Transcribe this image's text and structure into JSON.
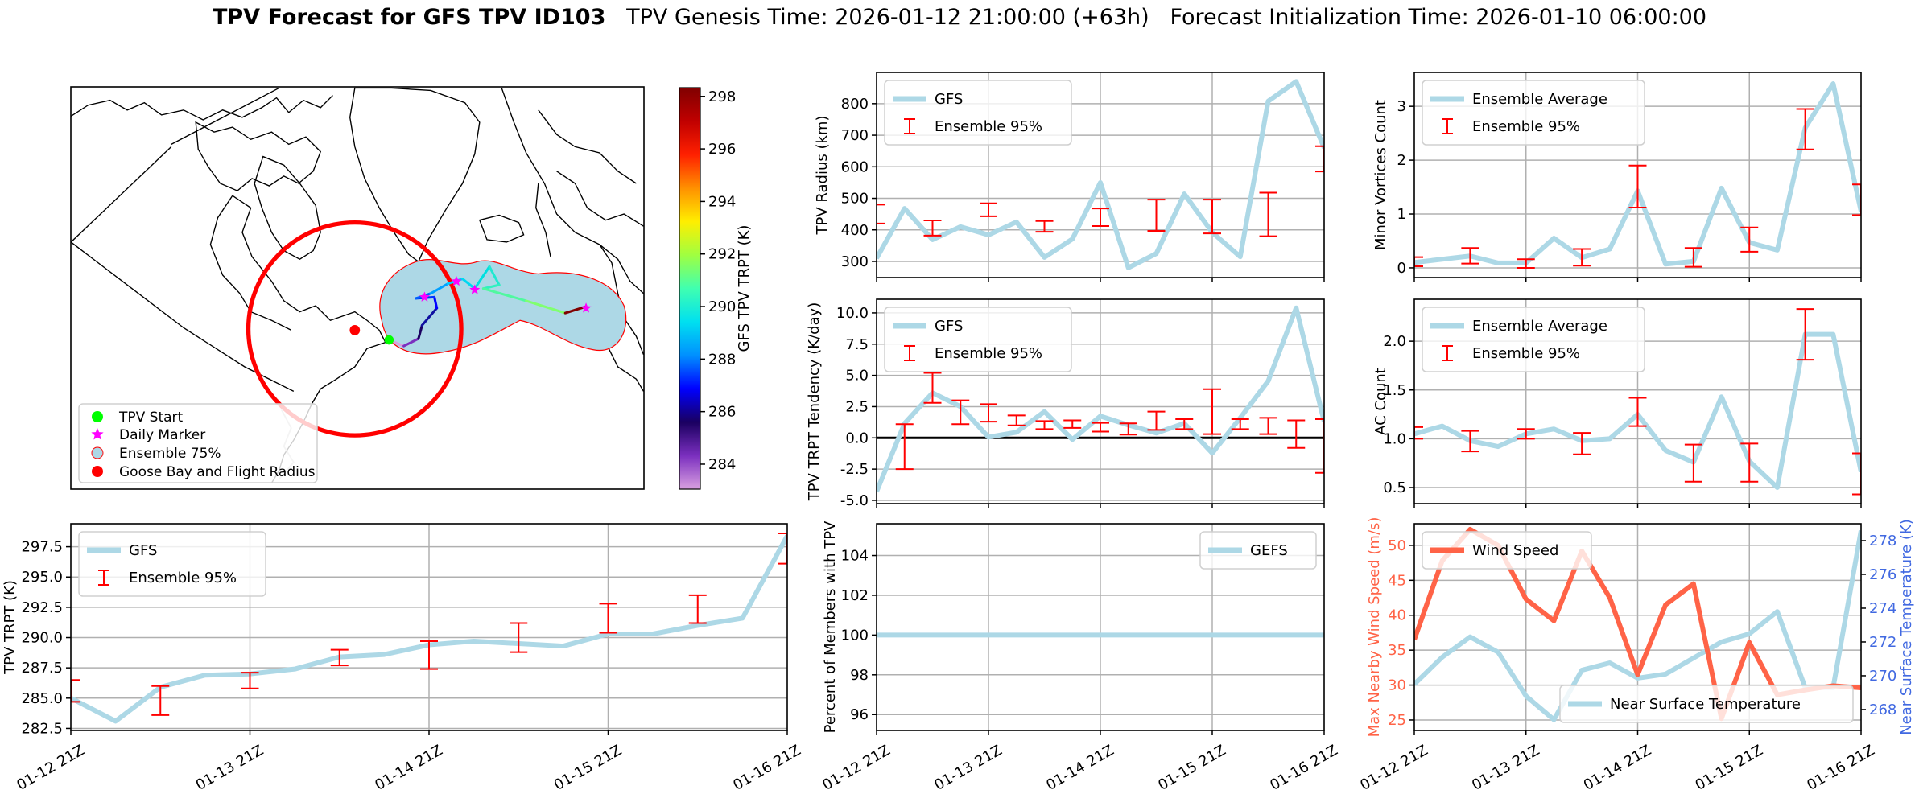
{
  "title": {
    "bold": "TPV Forecast for GFS TPV ID103",
    "genesis": "TPV Genesis Time: 2026-01-12 21:00:00 (+63h)",
    "init": "Forecast Initialization Time: 2026-01-10 06:00:00"
  },
  "colors": {
    "series": "#add8e6",
    "errorbar": "#ff0000",
    "wind": "#ff6347",
    "temperature_axis": "#4169e1",
    "grid": "#b0b0b0",
    "goose_bay": "#ff0000",
    "tpv_start": "#00ff00",
    "daily_marker": "#ff00ff",
    "ensemble_fill": "#add8e6"
  },
  "time_axis": {
    "x": [
      "01-12 21Z",
      "01-13 03Z",
      "01-13 09Z",
      "01-13 15Z",
      "01-13 21Z",
      "01-14 03Z",
      "01-14 09Z",
      "01-14 15Z",
      "01-14 21Z",
      "01-15 03Z",
      "01-15 09Z",
      "01-15 15Z",
      "01-15 21Z",
      "01-16 03Z",
      "01-16 09Z",
      "01-16 15Z",
      "01-16 21Z"
    ],
    "tick_labels": [
      "01-12 21Z",
      "01-13 21Z",
      "01-14 21Z",
      "01-15 21Z",
      "01-16 21Z"
    ]
  },
  "chart_data": [
    {
      "id": "map",
      "type": "map",
      "legend": [
        "TPV Start",
        "Daily Marker",
        "Ensemble 75%",
        "Goose Bay and Flight Radius"
      ],
      "legend_placement": "lower-left",
      "colorbar": {
        "label": "GFS TPV TRPT (K)",
        "ticks": [
          284,
          286,
          288,
          290,
          292,
          294,
          296,
          298
        ],
        "range": [
          283.05,
          298.33
        ],
        "colors": [
          "#d8a0e0",
          "#7b2fbf",
          "#1a0060",
          "#0000ff",
          "#0090ff",
          "#00e0f0",
          "#40ffb0",
          "#a0ff40",
          "#ffee00",
          "#ff9000",
          "#ff2000",
          "#c00000",
          "#800000"
        ]
      }
    },
    {
      "id": "radius",
      "type": "line",
      "ylabel": "TPV Radius (km)",
      "ylim": [
        249,
        899
      ],
      "yticks": [
        300,
        400,
        500,
        600,
        700,
        800
      ],
      "ytick_labels": [
        "300",
        "400",
        "500",
        "600",
        "700",
        "800"
      ],
      "show_xticklabels": false,
      "legend_placement": "upper-left",
      "series": [
        {
          "name": "GFS",
          "values": [
            310,
            468,
            369,
            410,
            384,
            425,
            313,
            371,
            550,
            280,
            325,
            514,
            392,
            315,
            808,
            870,
            660
          ]
        }
      ],
      "errorbars": {
        "name": "Ensemble 95%",
        "ranges": [
          [
            420,
            480
          ],
          null,
          [
            382,
            430
          ],
          null,
          [
            443,
            484
          ],
          null,
          [
            394,
            428
          ],
          null,
          [
            412,
            468
          ],
          null,
          [
            397,
            496
          ],
          null,
          [
            389,
            496
          ],
          null,
          [
            380,
            518
          ],
          null,
          [
            585,
            665
          ]
        ]
      }
    },
    {
      "id": "minor",
      "type": "line",
      "ylabel": "Minor Vortices Count",
      "ylim": [
        -0.18,
        3.63
      ],
      "yticks": [
        0,
        1,
        2,
        3
      ],
      "ytick_labels": [
        "0",
        "1",
        "2",
        "3"
      ],
      "show_xticklabels": false,
      "legend_placement": "upper-left",
      "series": [
        {
          "name": "Ensemble Average",
          "values": [
            0.1,
            0.16,
            0.22,
            0.09,
            0.09,
            0.55,
            0.19,
            0.35,
            1.43,
            0.07,
            0.12,
            1.48,
            0.47,
            0.33,
            2.6,
            3.42,
            1.05
          ]
        }
      ],
      "errorbars": {
        "name": "Ensemble 95%",
        "ranges": [
          [
            0.03,
            0.2
          ],
          null,
          [
            0.08,
            0.37
          ],
          null,
          [
            0,
            0.16
          ],
          null,
          [
            0.04,
            0.35
          ],
          null,
          [
            1.12,
            1.9
          ],
          null,
          [
            0.02,
            0.37
          ],
          null,
          [
            0.3,
            0.75
          ],
          null,
          [
            2.2,
            2.95
          ],
          null,
          [
            0.98,
            1.55
          ]
        ]
      }
    },
    {
      "id": "tendency",
      "type": "line",
      "ylabel": "TPV TRPT Tendency (K/day)",
      "ylim": [
        -5.26,
        11.09
      ],
      "yticks": [
        -5,
        -2.5,
        0,
        2.5,
        5,
        7.5,
        10
      ],
      "ytick_labels": [
        "-5.0",
        "-2.5",
        "0.0",
        "2.5",
        "5.0",
        "7.5",
        "10.0"
      ],
      "zero_line": true,
      "show_xticklabels": false,
      "legend_placement": "upper-left",
      "series": [
        {
          "name": "GFS",
          "values": [
            -4.3,
            1.16,
            3.6,
            2.5,
            0.06,
            0.45,
            2.1,
            -0.13,
            1.74,
            1.03,
            0.39,
            1.16,
            -1.22,
            1.6,
            4.55,
            10.4,
            1.3
          ]
        }
      ],
      "errorbars": {
        "name": "Ensemble 95%",
        "ranges": [
          null,
          [
            -2.5,
            1.1
          ],
          [
            2.8,
            5.2
          ],
          [
            1.1,
            3.0
          ],
          [
            1.3,
            2.7
          ],
          [
            1.0,
            1.8
          ],
          [
            0.7,
            1.35
          ],
          [
            0.8,
            1.4
          ],
          [
            0.5,
            1.2
          ],
          [
            0.26,
            1.16
          ],
          [
            0.64,
            2.1
          ],
          [
            0.7,
            1.5
          ],
          [
            0.3,
            3.9
          ],
          [
            0.7,
            1.5
          ],
          [
            0.3,
            1.6
          ],
          [
            -0.8,
            1.4
          ],
          [
            -2.8,
            1.5
          ]
        ]
      }
    },
    {
      "id": "ac",
      "type": "line",
      "ylabel": "AC Count",
      "ylim": [
        0.335,
        2.43
      ],
      "yticks": [
        0.5,
        1.0,
        1.5,
        2.0
      ],
      "ytick_labels": [
        "0.5",
        "1.0",
        "1.5",
        "2.0"
      ],
      "show_xticklabels": false,
      "legend_placement": "upper-left",
      "series": [
        {
          "name": "Ensemble Average",
          "values": [
            1.05,
            1.13,
            0.98,
            0.92,
            1.05,
            1.1,
            0.98,
            1.0,
            1.25,
            0.88,
            0.76,
            1.43,
            0.77,
            0.5,
            2.07,
            2.07,
            0.66
          ]
        }
      ],
      "errorbars": {
        "name": "Ensemble 95%",
        "ranges": [
          [
            1.0,
            1.12
          ],
          null,
          [
            0.87,
            1.08
          ],
          null,
          [
            1.0,
            1.1
          ],
          null,
          [
            0.84,
            1.06
          ],
          null,
          [
            1.13,
            1.42
          ],
          null,
          [
            0.56,
            0.94
          ],
          null,
          [
            0.56,
            0.95
          ],
          null,
          [
            1.81,
            2.33
          ],
          null,
          [
            0.43,
            0.85
          ]
        ]
      }
    },
    {
      "id": "trpt",
      "type": "line",
      "ylabel": "TPV TRPT (K)",
      "ylim": [
        282.33,
        299.4
      ],
      "yticks": [
        282.5,
        285,
        287.5,
        290,
        292.5,
        295,
        297.5
      ],
      "ytick_labels": [
        "282.5",
        "285.0",
        "287.5",
        "290.0",
        "292.5",
        "295.0",
        "297.5"
      ],
      "show_xticklabels": true,
      "legend_placement": "upper-left",
      "series": [
        {
          "name": "GFS",
          "values": [
            285.0,
            283.1,
            285.9,
            286.9,
            287.0,
            287.4,
            288.4,
            288.6,
            289.4,
            289.7,
            289.5,
            289.3,
            290.3,
            290.3,
            291.0,
            291.6,
            298.4
          ]
        }
      ],
      "errorbars": {
        "name": "Ensemble 95%",
        "ranges": [
          [
            284.7,
            286.5
          ],
          null,
          [
            283.6,
            286.0
          ],
          null,
          [
            285.8,
            287.1
          ],
          null,
          [
            287.7,
            289.0
          ],
          null,
          [
            287.4,
            289.7
          ],
          null,
          [
            288.8,
            291.2
          ],
          null,
          [
            290.4,
            292.8
          ],
          null,
          [
            291.2,
            293.5
          ],
          null,
          [
            296.1,
            298.6
          ]
        ]
      }
    },
    {
      "id": "percent",
      "type": "line",
      "ylabel": "Percent of Members with TPV",
      "ylim": [
        95.2,
        105.6
      ],
      "yticks": [
        96,
        98,
        100,
        102,
        104
      ],
      "ytick_labels": [
        "96",
        "98",
        "100",
        "102",
        "104"
      ],
      "show_xticklabels": true,
      "legend_placement": "upper-right",
      "series": [
        {
          "name": "GEFS",
          "values": [
            100,
            100,
            100,
            100,
            100,
            100,
            100,
            100,
            100,
            100,
            100,
            100,
            100,
            100,
            100,
            100,
            100
          ]
        }
      ]
    },
    {
      "id": "wind",
      "type": "line",
      "ylabel": "Max Nearby Wind Speed (m/s)",
      "ylim": [
        23.5,
        53.1
      ],
      "yticks": [
        25,
        30,
        35,
        40,
        45,
        50
      ],
      "ytick_labels": [
        "25",
        "30",
        "35",
        "40",
        "45",
        "50"
      ],
      "show_xticklabels": true,
      "legend_placement": "upper-left",
      "series": [
        {
          "name": "Wind Speed",
          "values": [
            36.5,
            47.8,
            52.3,
            50.0,
            42.3,
            39.2,
            49.2,
            42.5,
            31.5,
            41.5,
            44.5,
            25.2,
            36.1,
            28.6,
            29.3,
            29.9,
            29.6
          ]
        }
      ],
      "secondary": {
        "ylabel": "Near Surface Temperature (K)",
        "ylim": [
          266.76,
          279.0
        ],
        "yticks": [
          268,
          270,
          272,
          274,
          276,
          278
        ],
        "ytick_labels": [
          "268",
          "270",
          "272",
          "274",
          "276",
          "278"
        ],
        "legend_placement": "lower-right",
        "series": [
          {
            "name": "Near Surface Temperature",
            "values": [
              269.5,
              271.1,
              272.3,
              271.4,
              268.8,
              267.4,
              270.33,
              270.76,
              269.86,
              270.1,
              271.05,
              272.0,
              272.48,
              273.8,
              269.3,
              269.3,
              278.6
            ]
          }
        ]
      }
    }
  ]
}
